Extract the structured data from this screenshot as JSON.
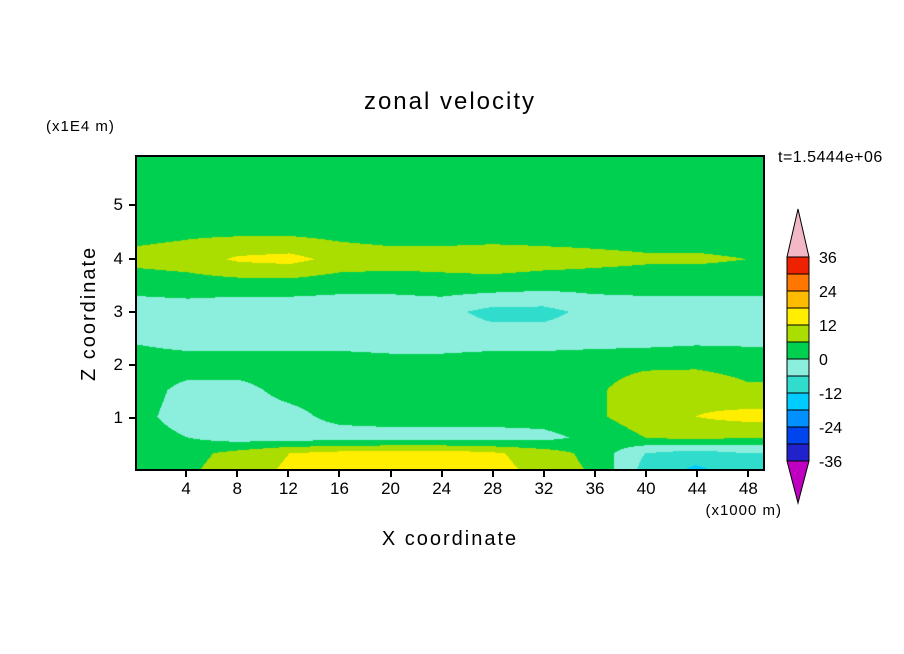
{
  "title": "zonal velocity",
  "timestamp": "t=1.5444e+06",
  "axes": {
    "x_label": "X coordinate",
    "x_unit": "(x1000 m)",
    "y_label": "Z coordinate",
    "y_unit": "(x1E4 m)",
    "x_ticks": [
      4,
      8,
      12,
      16,
      20,
      24,
      28,
      32,
      36,
      40,
      44,
      48
    ],
    "y_ticks": [
      1,
      2,
      3,
      4,
      5
    ]
  },
  "colorbar": {
    "labels": [
      36,
      24,
      12,
      0,
      -12,
      -24,
      -36
    ]
  },
  "chart_data": {
    "type": "heatmap",
    "title": "zonal velocity",
    "xlabel": "X coordinate (x1000 m)",
    "ylabel": "Z coordinate (x1E4 m)",
    "x_range": [
      0,
      49.3
    ],
    "z_range": [
      0,
      5.95
    ],
    "levels": [
      -36,
      -30,
      -24,
      -18,
      -12,
      -6,
      0,
      6,
      12,
      18,
      24,
      30,
      36
    ],
    "colors": [
      "#c000c0",
      "#2222cc",
      "#0044ee",
      "#0090ff",
      "#00ccff",
      "#30ddcc",
      "#8ceedd",
      "#00d050",
      "#aadd00",
      "#ffee00",
      "#ffbb00",
      "#ff7700",
      "#ee2200",
      "#f2b8c6"
    ],
    "x": [
      0,
      4,
      8,
      12,
      16,
      20,
      24,
      28,
      32,
      36,
      40,
      44,
      48
    ],
    "z": [
      0,
      0.3,
      0.6,
      1.0,
      1.5,
      2.0,
      2.5,
      3.0,
      3.5,
      4.0,
      4.5,
      5.0,
      5.5,
      5.95
    ],
    "values": [
      [
        3,
        5,
        9,
        13,
        14,
        15,
        15,
        14,
        10,
        5,
        -8,
        -13,
        -9
      ],
      [
        3,
        4,
        8,
        12,
        14,
        15,
        15,
        13,
        9,
        4,
        -6,
        -9,
        -6
      ],
      [
        3,
        0,
        -3,
        -3,
        -3,
        -3,
        -3,
        -3,
        -2,
        2,
        6,
        8,
        6
      ],
      [
        2,
        -3,
        -3,
        -2,
        2,
        3,
        3,
        3,
        3,
        5,
        9,
        12,
        14
      ],
      [
        3,
        -2,
        -2,
        2,
        3,
        3,
        3,
        2,
        3,
        5,
        9,
        10,
        7
      ],
      [
        3,
        3,
        3,
        3,
        3,
        2,
        2,
        3,
        3,
        4,
        5,
        5,
        4
      ],
      [
        -1,
        -3,
        -3,
        -3,
        -3,
        -3,
        -3,
        -3,
        -3,
        -3,
        -3,
        -2,
        -2
      ],
      [
        -3,
        -3,
        -4,
        -4,
        -4,
        -4,
        -4,
        -8,
        -8,
        -4,
        -3,
        -3,
        -3
      ],
      [
        2,
        3,
        3,
        3,
        2,
        2,
        3,
        3,
        2,
        2,
        2,
        2,
        2
      ],
      [
        8,
        9,
        13,
        14,
        10,
        9,
        9,
        10,
        9,
        8,
        7,
        7,
        6
      ],
      [
        4,
        5,
        5,
        5,
        4,
        3,
        3,
        3,
        3,
        3,
        3,
        3,
        3
      ],
      [
        3,
        3,
        3,
        3,
        3,
        3,
        3,
        3,
        3,
        3,
        3,
        3,
        3
      ],
      [
        3,
        3,
        4,
        4,
        3,
        3,
        3,
        3,
        3,
        2,
        2,
        2,
        2
      ],
      [
        3,
        3,
        3,
        3,
        3,
        3,
        3,
        3,
        3,
        3,
        3,
        3,
        3
      ]
    ]
  }
}
